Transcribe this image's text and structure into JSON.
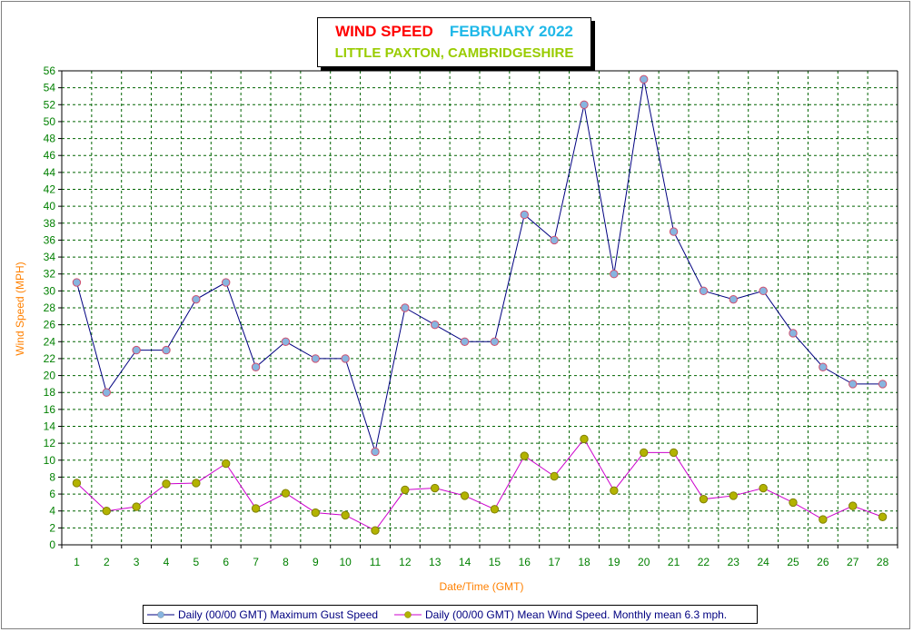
{
  "title": {
    "main": "WIND SPEED",
    "period": "FEBRUARY 2022",
    "location": "LITTLE PAXTON, CAMBRIDGESHIRE"
  },
  "chart_data": {
    "type": "line",
    "xlabel": "Date/Time (GMT)",
    "ylabel": "Wind Speed (MPH)",
    "ylim": [
      0,
      56
    ],
    "ytick_step": 2,
    "grid": true,
    "legend_position": "bottom",
    "categories": [
      "1",
      "2",
      "3",
      "4",
      "5",
      "6",
      "7",
      "8",
      "9",
      "10",
      "11",
      "12",
      "13",
      "14",
      "15",
      "16",
      "17",
      "18",
      "19",
      "20",
      "21",
      "22",
      "23",
      "24",
      "25",
      "26",
      "27",
      "28"
    ],
    "series": [
      {
        "name": "Daily (00/00 GMT) Maximum Gust Speed",
        "line_color": "#000080",
        "marker_color": "#87b5e0",
        "values": [
          31,
          18,
          23,
          23,
          29,
          31,
          21,
          24,
          22,
          22,
          11,
          28,
          26,
          24,
          24,
          39,
          36,
          52,
          32,
          55,
          37,
          30,
          29,
          30,
          25,
          21,
          19,
          19
        ]
      },
      {
        "name": "Daily (00/00 GMT) Mean Wind Speed. Monthly mean 6.3 mph.",
        "line_color": "#cc00cc",
        "marker_color": "#b3b300",
        "values": [
          7.3,
          4.0,
          4.5,
          7.2,
          7.3,
          9.6,
          4.3,
          6.1,
          3.8,
          3.5,
          1.7,
          6.5,
          6.7,
          5.8,
          4.2,
          10.5,
          8.1,
          12.5,
          6.4,
          10.9,
          10.9,
          5.4,
          5.8,
          6.7,
          5.0,
          3.0,
          4.6,
          3.3
        ]
      }
    ]
  },
  "colors": {
    "title_main": "#ff0000",
    "title_period": "#1fb8e8",
    "title_location": "#99cc00",
    "axis_label": "#ff8000",
    "tick_label": "#008000",
    "grid": "#006400"
  }
}
